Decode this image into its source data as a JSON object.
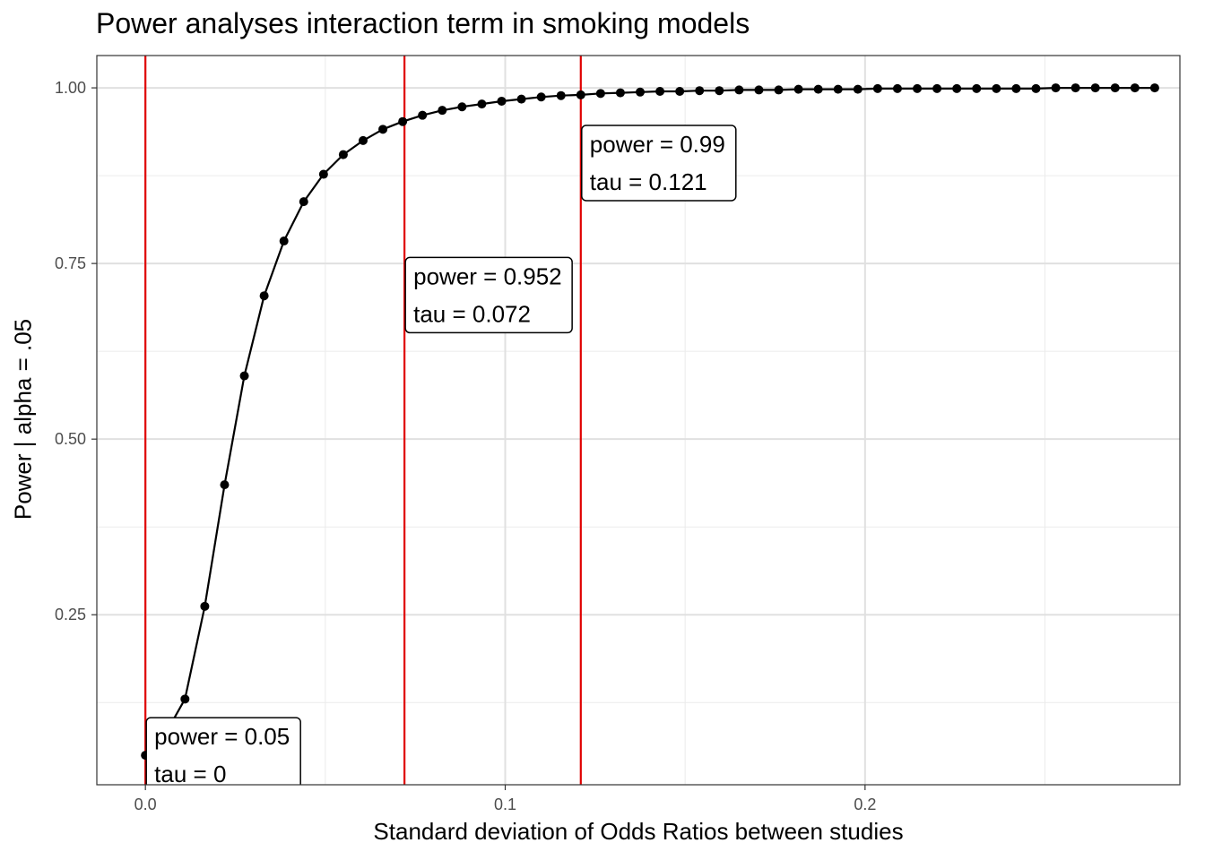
{
  "chart_data": {
    "type": "line",
    "title": "Power analyses interaction term in smoking models",
    "xlabel": "Standard deviation of Odds Ratios between studies",
    "ylabel": "Power | alpha = .05",
    "xlim": [
      -0.0135,
      0.2875
    ],
    "ylim": [
      0.008,
      1.046
    ],
    "x_ticks": [
      0.0,
      0.1,
      0.2
    ],
    "x_tick_labels": [
      "0.0",
      "0.1",
      "0.2"
    ],
    "y_ticks": [
      0.25,
      0.5,
      0.75,
      1.0
    ],
    "y_tick_labels": [
      "0.25",
      "0.50",
      "0.75",
      "1.00"
    ],
    "grid": true,
    "series": [
      {
        "x": [
          0,
          0.0055,
          0.011,
          0.0165,
          0.022,
          0.0275,
          0.033,
          0.0385,
          0.044,
          0.0495,
          0.055,
          0.0605,
          0.066,
          0.0715,
          0.077,
          0.0825,
          0.088,
          0.0935,
          0.099,
          0.1045,
          0.11,
          0.1155,
          0.121,
          0.1265,
          0.132,
          0.1375,
          0.143,
          0.1485,
          0.154,
          0.1595,
          0.165,
          0.1705,
          0.176,
          0.1815,
          0.187,
          0.1925,
          0.198,
          0.2035,
          0.209,
          0.2145,
          0.22,
          0.2255,
          0.231,
          0.2365,
          0.242,
          0.2475,
          0.253,
          0.2585,
          0.264,
          0.2695,
          0.275,
          0.2805
        ],
        "values": [
          0.05,
          0.08,
          0.13,
          0.262,
          0.435,
          0.59,
          0.704,
          0.782,
          0.838,
          0.877,
          0.905,
          0.925,
          0.941,
          0.952,
          0.961,
          0.968,
          0.973,
          0.977,
          0.981,
          0.984,
          0.987,
          0.989,
          0.99,
          0.992,
          0.993,
          0.994,
          0.995,
          0.995,
          0.996,
          0.996,
          0.997,
          0.997,
          0.997,
          0.998,
          0.998,
          0.998,
          0.998,
          0.999,
          0.999,
          0.999,
          0.999,
          0.999,
          0.999,
          0.999,
          0.999,
          0.999,
          1.0,
          1.0,
          1.0,
          1.0,
          1.0,
          1.0
        ]
      }
    ],
    "vlines": [
      0.0,
      0.072,
      0.121
    ],
    "vline_color": "#e00000",
    "line_color": "#000000",
    "annotations": [
      {
        "x": 0.0,
        "y": 0.05,
        "line1": "power = 0.05",
        "line2": "tau =  0"
      },
      {
        "x": 0.072,
        "y": 0.705,
        "line1": "power = 0.952",
        "line2": "tau =  0.072"
      },
      {
        "x": 0.121,
        "y": 0.893,
        "line1": "power = 0.99",
        "line2": "tau =  0.121"
      }
    ]
  }
}
